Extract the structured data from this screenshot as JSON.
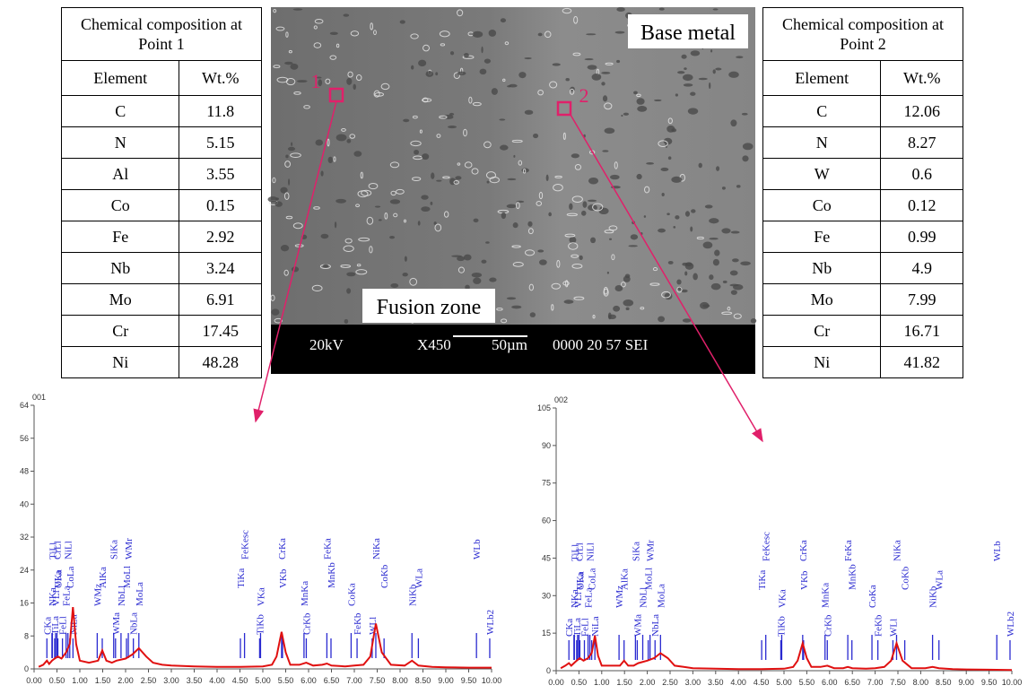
{
  "tables": [
    {
      "title": "Chemical composition at Point 1",
      "header": [
        "Element",
        "Wt.%"
      ],
      "rows": [
        [
          "C",
          "11.8"
        ],
        [
          "N",
          "5.15"
        ],
        [
          "Al",
          "3.55"
        ],
        [
          "Co",
          "0.15"
        ],
        [
          "Fe",
          "2.92"
        ],
        [
          "Nb",
          "3.24"
        ],
        [
          "Mo",
          "6.91"
        ],
        [
          "Cr",
          "17.45"
        ],
        [
          "Ni",
          "48.28"
        ]
      ]
    },
    {
      "title": "Chemical composition at Point 2",
      "header": [
        "Element",
        "Wt.%"
      ],
      "rows": [
        [
          "C",
          "12.06"
        ],
        [
          "N",
          "8.27"
        ],
        [
          "W",
          "0.6"
        ],
        [
          "Co",
          "0.12"
        ],
        [
          "Fe",
          "0.99"
        ],
        [
          "Nb",
          "4.9"
        ],
        [
          "Mo",
          "7.99"
        ],
        [
          "Cr",
          "16.71"
        ],
        [
          "Ni",
          "41.82"
        ]
      ]
    }
  ],
  "image": {
    "base_metal": "Base metal",
    "fusion_zone": "Fusion zone",
    "point1": "1",
    "point2": "2",
    "info_bar": [
      "20kV",
      "X450",
      "50µm",
      "0000 20 57 SEI"
    ]
  },
  "chart_data": [
    {
      "type": "line",
      "title": "001",
      "color": "#e01010",
      "x": [
        0.1,
        0.2,
        0.28,
        0.33,
        0.39,
        0.45,
        0.52,
        0.6,
        0.7,
        0.78,
        0.85,
        0.92,
        1.0,
        1.2,
        1.4,
        1.49,
        1.58,
        1.7,
        1.8,
        2.0,
        2.15,
        2.29,
        2.45,
        2.6,
        2.8,
        3.0,
        3.5,
        4.0,
        4.5,
        5.0,
        5.2,
        5.3,
        5.41,
        5.5,
        5.6,
        5.8,
        5.95,
        6.1,
        6.3,
        6.4,
        6.5,
        6.8,
        7.0,
        7.2,
        7.35,
        7.47,
        7.6,
        7.8,
        8.1,
        8.26,
        8.4,
        8.7,
        9.0,
        9.5,
        10.0
      ],
      "values": [
        0.5,
        1,
        2,
        1.2,
        2,
        2.5,
        3,
        2.5,
        4,
        6,
        15,
        6,
        2,
        1.5,
        2,
        4.5,
        2,
        1.5,
        2,
        2.5,
        3.5,
        5,
        3,
        1.5,
        1,
        0.8,
        0.6,
        0.5,
        0.5,
        0.6,
        1,
        3,
        9,
        4,
        1,
        1,
        1.5,
        0.8,
        1,
        1.3,
        0.8,
        0.6,
        0.8,
        1,
        3,
        11,
        4,
        1,
        0.8,
        2,
        0.8,
        0.5,
        0.4,
        0.3,
        0.3
      ],
      "xlim": [
        0,
        10
      ],
      "ylim": [
        0,
        64
      ],
      "yticks": [
        0,
        8,
        16,
        24,
        32,
        40,
        48,
        56,
        64
      ],
      "xticks": [
        {
          "value": 0,
          "label": "0.00"
        },
        {
          "value": 0.5,
          "label": "0.50"
        },
        {
          "value": 1,
          "label": "1.00"
        },
        {
          "value": 1.5,
          "label": "1.50"
        },
        {
          "value": 2,
          "label": "2.00"
        },
        {
          "value": 2.5,
          "label": "2.50"
        },
        {
          "value": 3,
          "label": "3.00"
        },
        {
          "value": 3.5,
          "label": "3.50"
        },
        {
          "value": 4,
          "label": "4.00"
        },
        {
          "value": 4.5,
          "label": "4.50"
        },
        {
          "value": 5,
          "label": "5.00"
        },
        {
          "value": 5.5,
          "label": "5.50"
        },
        {
          "value": 6,
          "label": "6.00"
        },
        {
          "value": 6.5,
          "label": "6.50"
        },
        {
          "value": 7,
          "label": "7.00"
        },
        {
          "value": 7.5,
          "label": "7.50"
        },
        {
          "value": 8,
          "label": "8.00"
        },
        {
          "value": 8.5,
          "label": "8.50"
        },
        {
          "value": 9,
          "label": "9.00"
        },
        {
          "value": 9.5,
          "label": "9.50"
        },
        {
          "value": 10,
          "label": "10.00"
        }
      ],
      "annotations": [
        {
          "text": "CKa",
          "x": 0.28
        },
        {
          "text": "NKa",
          "x": 0.39
        },
        {
          "text": "OKa",
          "x": 0.52
        },
        {
          "text": "TiLl",
          "x": 0.4
        },
        {
          "text": "TiLa",
          "x": 0.45
        },
        {
          "text": "VLl",
          "x": 0.47
        },
        {
          "text": "VLa",
          "x": 0.51
        },
        {
          "text": "CrLl",
          "x": 0.5
        },
        {
          "text": "FeLl",
          "x": 0.62
        },
        {
          "text": "FeLa",
          "x": 0.7
        },
        {
          "text": "CoLa",
          "x": 0.78
        },
        {
          "text": "NiLl",
          "x": 0.74
        },
        {
          "text": "NiLa",
          "x": 0.85
        },
        {
          "text": "WMz",
          "x": 1.38
        },
        {
          "text": "AlKa",
          "x": 1.49
        },
        {
          "text": "SiKa",
          "x": 1.74
        },
        {
          "text": "WMa",
          "x": 1.78
        },
        {
          "text": "NbLl",
          "x": 1.9
        },
        {
          "text": "MoLl",
          "x": 2.02
        },
        {
          "text": "WMr",
          "x": 2.06
        },
        {
          "text": "NbLa",
          "x": 2.17
        },
        {
          "text": "MoLa",
          "x": 2.29
        },
        {
          "text": "TiKa",
          "x": 4.51
        },
        {
          "text": "FeKesc",
          "x": 4.6
        },
        {
          "text": "TiKb",
          "x": 4.93
        },
        {
          "text": "VKa",
          "x": 4.95
        },
        {
          "text": "VKb",
          "x": 5.43
        },
        {
          "text": "CrKa",
          "x": 5.41
        },
        {
          "text": "CrKb",
          "x": 5.95
        },
        {
          "text": "MnKa",
          "x": 5.9
        },
        {
          "text": "MnKb",
          "x": 6.49
        },
        {
          "text": "FeKa",
          "x": 6.4
        },
        {
          "text": "FeKb",
          "x": 7.06
        },
        {
          "text": "CoKa",
          "x": 6.93
        },
        {
          "text": "CoKb",
          "x": 7.65
        },
        {
          "text": "NiKa",
          "x": 7.47
        },
        {
          "text": "WLl",
          "x": 7.39
        },
        {
          "text": "NiKb",
          "x": 8.26
        },
        {
          "text": "WLa",
          "x": 8.4
        },
        {
          "text": "WLb",
          "x": 9.67
        },
        {
          "text": "WLb2",
          "x": 9.96
        }
      ]
    },
    {
      "type": "line",
      "title": "002",
      "color": "#e01010",
      "x": [
        0.1,
        0.2,
        0.28,
        0.33,
        0.39,
        0.45,
        0.52,
        0.6,
        0.7,
        0.78,
        0.85,
        0.92,
        1.0,
        1.2,
        1.4,
        1.49,
        1.58,
        1.7,
        1.8,
        2.0,
        2.15,
        2.29,
        2.45,
        2.6,
        2.8,
        3.0,
        3.5,
        4.0,
        4.5,
        5.0,
        5.2,
        5.3,
        5.41,
        5.5,
        5.6,
        5.8,
        5.95,
        6.1,
        6.3,
        6.4,
        6.5,
        6.8,
        7.0,
        7.2,
        7.35,
        7.47,
        7.6,
        7.8,
        8.1,
        8.26,
        8.4,
        8.7,
        9.0,
        9.5,
        10.0
      ],
      "values": [
        1,
        2,
        3,
        2,
        3,
        4,
        5,
        4,
        5,
        7,
        14,
        6,
        2,
        2,
        2,
        4,
        2,
        2,
        3,
        4,
        5,
        7,
        5,
        2,
        1.5,
        1,
        0.8,
        0.6,
        0.6,
        0.8,
        1.5,
        4,
        11,
        5,
        1.5,
        1.5,
        2,
        1,
        1,
        1.5,
        1,
        0.8,
        1,
        1.5,
        4,
        11,
        4,
        1,
        1,
        1.5,
        1,
        0.6,
        0.5,
        0.4,
        0.3
      ],
      "xlim": [
        0,
        10
      ],
      "ylim": [
        0,
        105
      ],
      "yticks": [
        0,
        15,
        30,
        45,
        60,
        75,
        90,
        105
      ],
      "xticks": [
        {
          "value": 0,
          "label": "0.00"
        },
        {
          "value": 0.5,
          "label": "0.50"
        },
        {
          "value": 1,
          "label": "1.00"
        },
        {
          "value": 1.5,
          "label": "1.50"
        },
        {
          "value": 2,
          "label": "2.00"
        },
        {
          "value": 2.5,
          "label": "2.50"
        },
        {
          "value": 3,
          "label": "3.00"
        },
        {
          "value": 3.5,
          "label": "3.50"
        },
        {
          "value": 4,
          "label": "4.00"
        },
        {
          "value": 4.5,
          "label": "4.50"
        },
        {
          "value": 5,
          "label": "5.00"
        },
        {
          "value": 5.5,
          "label": "5.50"
        },
        {
          "value": 6,
          "label": "6.00"
        },
        {
          "value": 6.5,
          "label": "6.50"
        },
        {
          "value": 7,
          "label": "7.00"
        },
        {
          "value": 7.5,
          "label": "7.50"
        },
        {
          "value": 8,
          "label": "8.00"
        },
        {
          "value": 8.5,
          "label": "8.50"
        },
        {
          "value": 9,
          "label": "9.00"
        },
        {
          "value": 9.5,
          "label": "9.50"
        },
        {
          "value": 10,
          "label": "10.00"
        }
      ],
      "annotations": [
        {
          "text": "CKa",
          "x": 0.28
        },
        {
          "text": "NKa",
          "x": 0.39
        },
        {
          "text": "OKa",
          "x": 0.52
        },
        {
          "text": "TiLl",
          "x": 0.4
        },
        {
          "text": "TiLa",
          "x": 0.45
        },
        {
          "text": "VLl",
          "x": 0.47
        },
        {
          "text": "VLa",
          "x": 0.51
        },
        {
          "text": "CrLl",
          "x": 0.5
        },
        {
          "text": "FeLl",
          "x": 0.62
        },
        {
          "text": "FeLa",
          "x": 0.7
        },
        {
          "text": "CoLa",
          "x": 0.78
        },
        {
          "text": "NiLl",
          "x": 0.74
        },
        {
          "text": "NiLa",
          "x": 0.85
        },
        {
          "text": "WMz",
          "x": 1.38
        },
        {
          "text": "AlKa",
          "x": 1.49
        },
        {
          "text": "SiKa",
          "x": 1.74
        },
        {
          "text": "WMa",
          "x": 1.78
        },
        {
          "text": "NbLl",
          "x": 1.9
        },
        {
          "text": "MoLl",
          "x": 2.02
        },
        {
          "text": "WMr",
          "x": 2.06
        },
        {
          "text": "NbLa",
          "x": 2.17
        },
        {
          "text": "MoLa",
          "x": 2.29
        },
        {
          "text": "TiKa",
          "x": 4.51
        },
        {
          "text": "FeKesc",
          "x": 4.6
        },
        {
          "text": "TiKb",
          "x": 4.93
        },
        {
          "text": "VKa",
          "x": 4.95
        },
        {
          "text": "VKb",
          "x": 5.43
        },
        {
          "text": "CrKa",
          "x": 5.41
        },
        {
          "text": "CrKb",
          "x": 5.95
        },
        {
          "text": "MnKa",
          "x": 5.9
        },
        {
          "text": "MnKb",
          "x": 6.49
        },
        {
          "text": "FeKa",
          "x": 6.4
        },
        {
          "text": "FeKb",
          "x": 7.06
        },
        {
          "text": "CoKa",
          "x": 6.93
        },
        {
          "text": "CoKb",
          "x": 7.65
        },
        {
          "text": "NiKa",
          "x": 7.47
        },
        {
          "text": "WLl",
          "x": 7.39
        },
        {
          "text": "NiKb",
          "x": 8.26
        },
        {
          "text": "WLa",
          "x": 8.4
        },
        {
          "text": "WLb",
          "x": 9.67
        },
        {
          "text": "WLb2",
          "x": 9.96
        }
      ]
    }
  ]
}
